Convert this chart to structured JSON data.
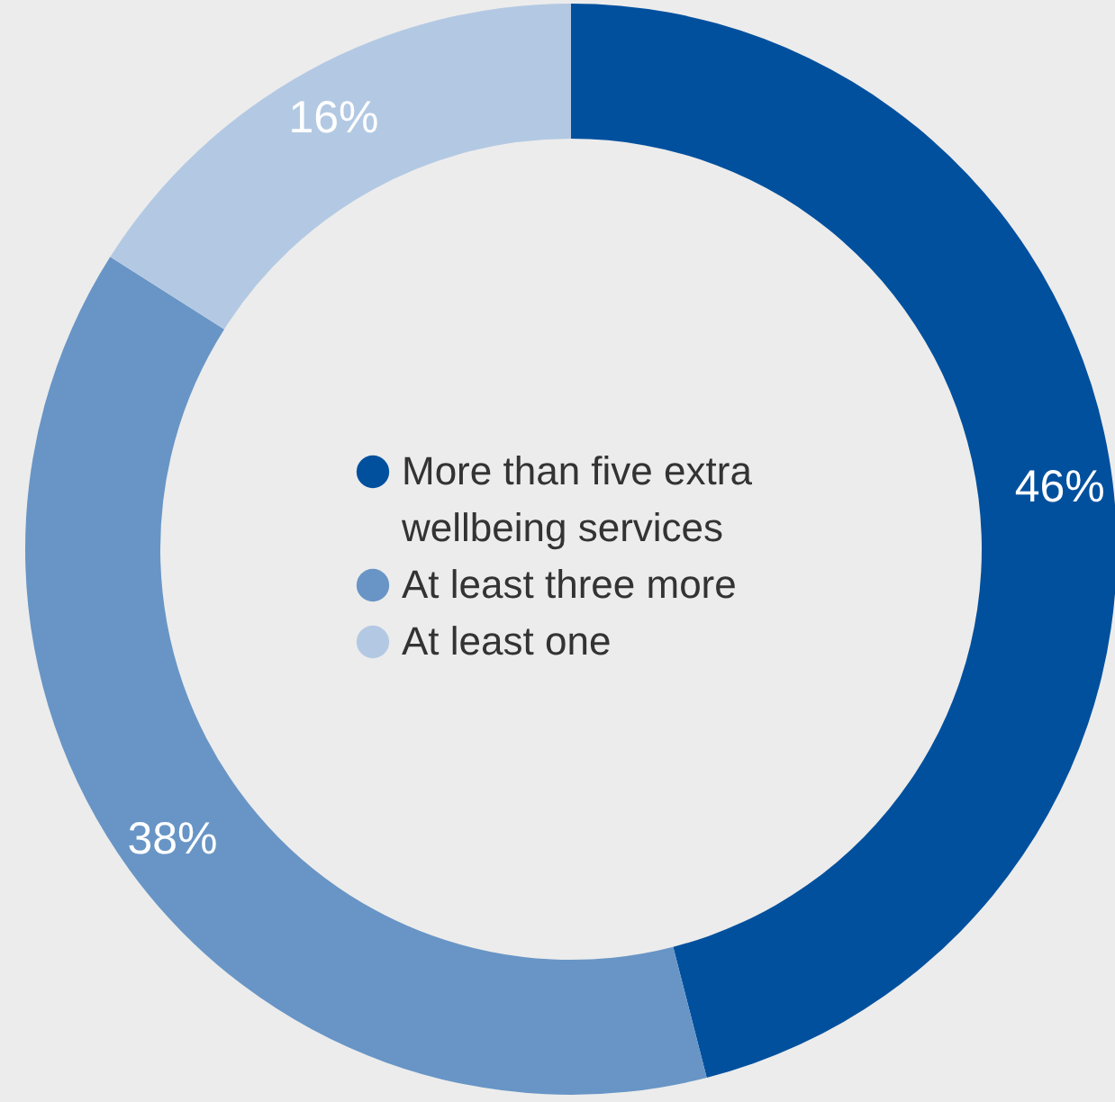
{
  "chart_data": {
    "type": "donut",
    "categories": [
      "More than five extra wellbeing services",
      "At least three more",
      "At least one"
    ],
    "values": [
      46,
      38,
      16
    ],
    "colors": [
      "#00509e",
      "#6895c6",
      "#b3c9e3"
    ],
    "value_labels": [
      "46%",
      "38%",
      "16%"
    ],
    "legend": "center"
  }
}
